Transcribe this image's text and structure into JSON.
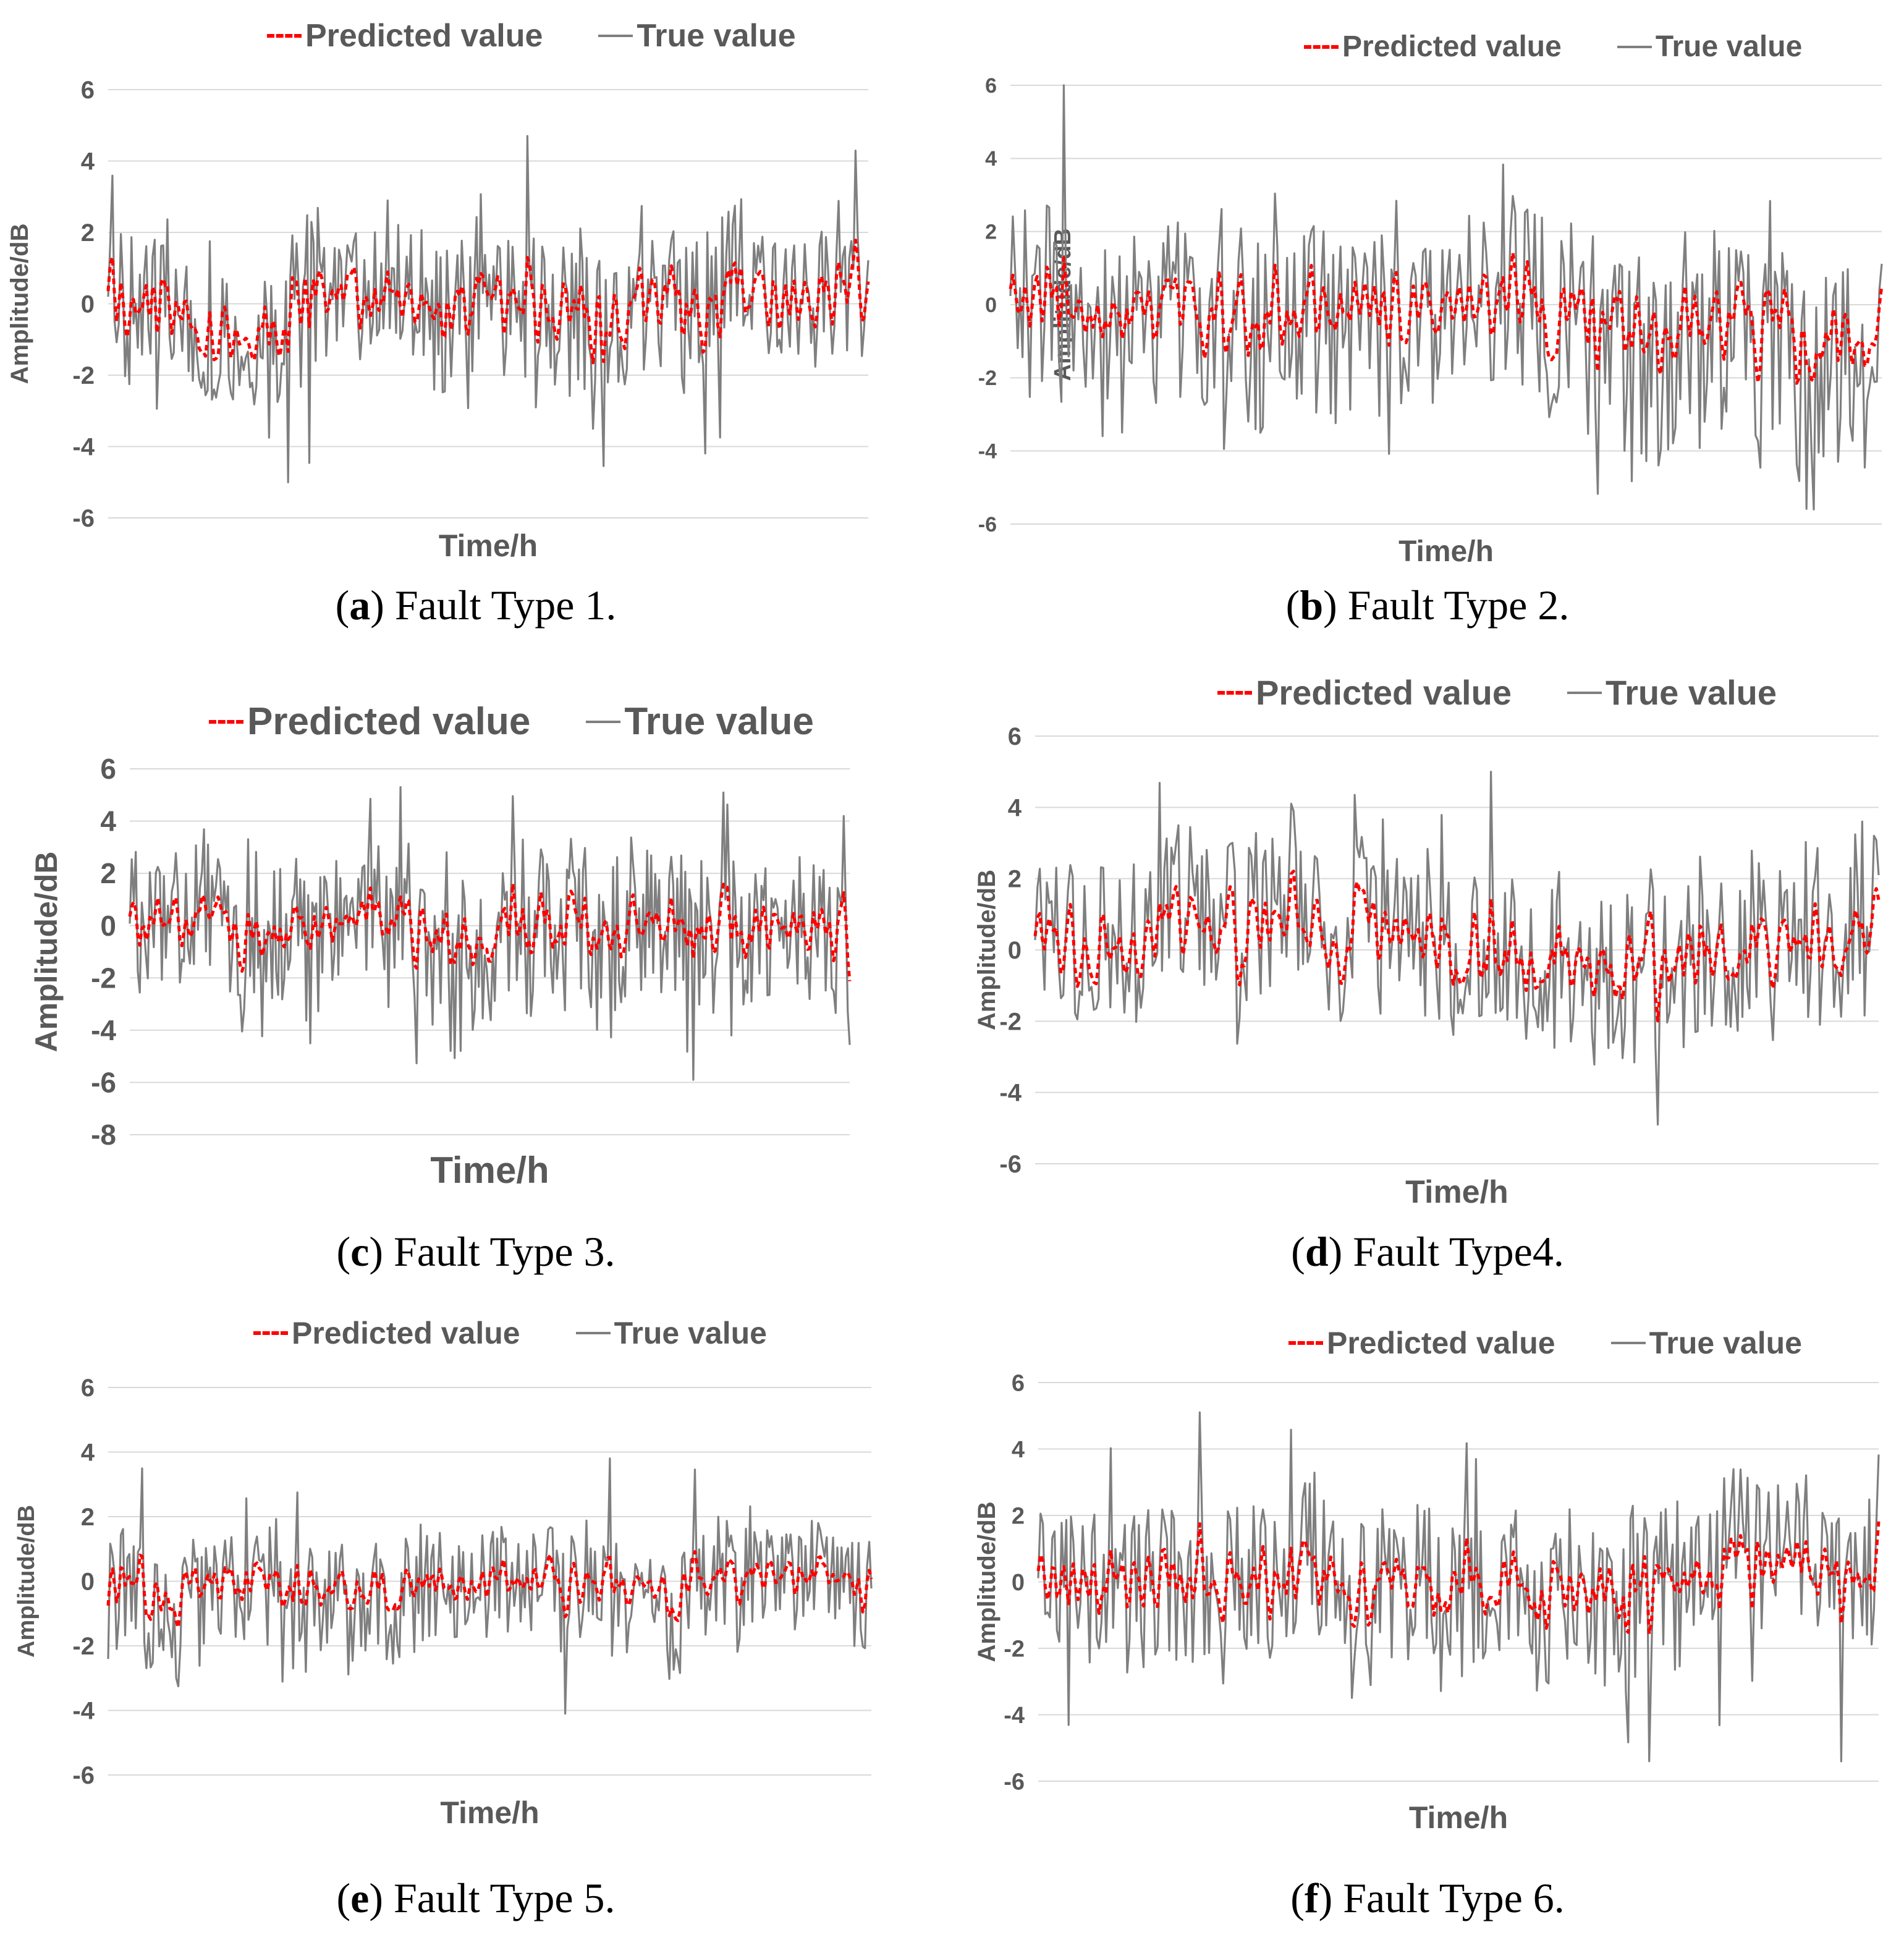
{
  "chart_data": [
    {
      "id": "a",
      "type": "line",
      "letter": "a",
      "caption": "Fault Type 1.",
      "xlabel": "Time/h",
      "ylabel": "Amplitude/dB",
      "ylim": [
        -6,
        6
      ],
      "yticks": [
        "6",
        "4",
        "2",
        "0",
        "-2",
        "-4",
        "-6"
      ],
      "grid": true,
      "legend_position": "top",
      "series": [
        {
          "name": "Predicted value",
          "style": "dashed",
          "color": "#ff0000",
          "amplitude": 0.62,
          "seed": 11
        },
        {
          "name": "True value",
          "style": "solid",
          "color": "#7f7f7f",
          "amplitude": 1.0,
          "seed": 11,
          "peak_max": 4.7,
          "peak_min": -5.0
        }
      ]
    },
    {
      "id": "b",
      "type": "line",
      "letter": "b",
      "caption": "Fault Type 2.",
      "xlabel": "Time/h",
      "ylabel": "Amplitude/dB",
      "ylim": [
        -6,
        6
      ],
      "yticks": [
        "6",
        "4",
        "2",
        "0",
        "-2",
        "-4",
        "-6"
      ],
      "grid": true,
      "legend_position": "top",
      "series": [
        {
          "name": "Predicted value",
          "style": "dashed",
          "color": "#ff0000",
          "amplitude": 0.55,
          "seed": 23
        },
        {
          "name": "True value",
          "style": "solid",
          "color": "#7f7f7f",
          "amplitude": 1.0,
          "seed": 23,
          "peak_max": 6.0,
          "peak_min": -5.6
        }
      ]
    },
    {
      "id": "c",
      "type": "line",
      "letter": "c",
      "caption": "Fault Type 3.",
      "xlabel": "Time/h",
      "ylabel": "Amplitude/dB",
      "ylim": [
        -8,
        6
      ],
      "yticks": [
        "6",
        "4",
        "2",
        "0",
        "-2",
        "-4",
        "-6",
        "-8"
      ],
      "grid": true,
      "legend_position": "top",
      "series": [
        {
          "name": "Predicted value",
          "style": "dashed",
          "color": "#ff0000",
          "amplitude": 0.5,
          "seed": 37
        },
        {
          "name": "True value",
          "style": "solid",
          "color": "#7f7f7f",
          "amplitude": 1.0,
          "seed": 37,
          "peak_max": 5.3,
          "peak_min": -5.9
        }
      ]
    },
    {
      "id": "d",
      "type": "line",
      "letter": "d",
      "caption": "Fault Type4.",
      "xlabel": "Time/h",
      "ylabel": "Amplitude/dB",
      "ylim": [
        -6,
        6
      ],
      "yticks": [
        "6",
        "4",
        "2",
        "0",
        "-2",
        "-4",
        "-6"
      ],
      "grid": true,
      "legend_position": "top",
      "series": [
        {
          "name": "Predicted value",
          "style": "dashed",
          "color": "#ff0000",
          "amplitude": 0.6,
          "seed": 41
        },
        {
          "name": "True value",
          "style": "solid",
          "color": "#7f7f7f",
          "amplitude": 1.0,
          "seed": 41,
          "peak_max": 5.0,
          "peak_min": -4.9
        }
      ]
    },
    {
      "id": "e",
      "type": "line",
      "letter": "e",
      "caption": "Fault Type 5.",
      "xlabel": "Time/h",
      "ylabel": "Amplitude/dB",
      "ylim": [
        -6,
        6
      ],
      "yticks": [
        "6",
        "4",
        "2",
        "0",
        "-2",
        "-4",
        "-6"
      ],
      "grid": true,
      "legend_position": "top",
      "series": [
        {
          "name": "Predicted value",
          "style": "dashed",
          "color": "#ff0000",
          "amplitude": 0.5,
          "seed": 53
        },
        {
          "name": "True value",
          "style": "solid",
          "color": "#7f7f7f",
          "amplitude": 1.0,
          "seed": 53,
          "peak_max": 3.8,
          "peak_min": -4.1
        }
      ]
    },
    {
      "id": "f",
      "type": "line",
      "letter": "f",
      "caption": "Fault Type 6.",
      "xlabel": "Time/h",
      "ylabel": "Amplitude/dB",
      "ylim": [
        -6,
        6
      ],
      "yticks": [
        "6",
        "4",
        "2",
        "0",
        "-2",
        "-4",
        "-6"
      ],
      "grid": true,
      "legend_position": "top",
      "series": [
        {
          "name": "Predicted value",
          "style": "dashed",
          "color": "#ff0000",
          "amplitude": 0.55,
          "seed": 67
        },
        {
          "name": "True value",
          "style": "solid",
          "color": "#7f7f7f",
          "amplitude": 1.0,
          "seed": 67,
          "peak_max": 5.1,
          "peak_min": -5.4
        }
      ]
    }
  ]
}
